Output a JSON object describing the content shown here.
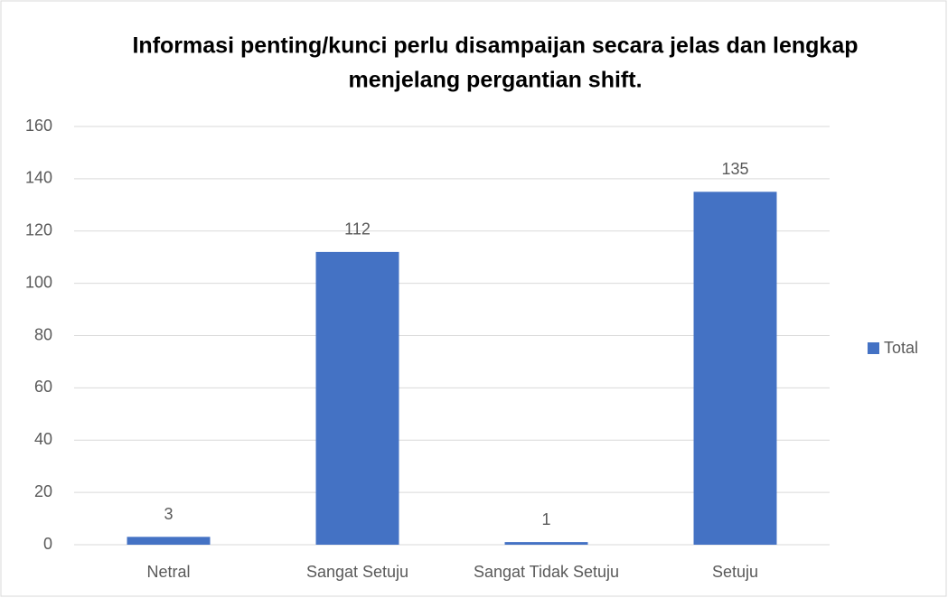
{
  "chart_data": {
    "type": "bar",
    "title": "Informasi penting/kunci perlu disampaijan secara jelas dan lengkap menjelang pergantian shift.",
    "categories": [
      "Netral",
      "Sangat Setuju",
      "Sangat Tidak Setuju",
      "Setuju"
    ],
    "series": [
      {
        "name": "Total",
        "color": "#4472c4",
        "values": [
          3,
          112,
          1,
          135
        ]
      }
    ],
    "ylim": [
      0,
      160
    ],
    "yticks": [
      0,
      20,
      40,
      60,
      80,
      100,
      120,
      140,
      160
    ],
    "grid": true,
    "legend": "right"
  }
}
